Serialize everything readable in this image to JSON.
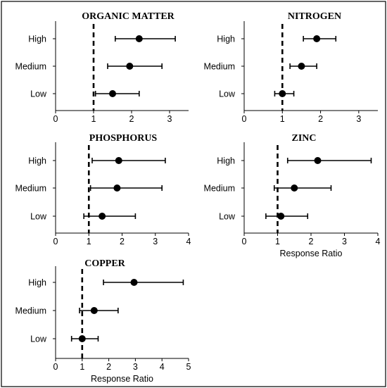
{
  "chart_data": [
    {
      "type": "forest",
      "title": "ORGANIC MATTER",
      "categories": [
        "High",
        "Medium",
        "Low"
      ],
      "points": [
        {
          "category": "High",
          "value": 2.2,
          "lower": 1.57,
          "upper": 3.15
        },
        {
          "category": "Medium",
          "value": 1.95,
          "lower": 1.37,
          "upper": 2.8
        },
        {
          "category": "Low",
          "value": 1.5,
          "lower": 1.05,
          "upper": 2.2
        }
      ],
      "xlim": [
        0,
        3.5
      ],
      "xticks": [
        "0",
        "1",
        "2",
        "3"
      ],
      "reference_line": 1,
      "xlabel": ""
    },
    {
      "type": "forest",
      "title": "NITROGEN",
      "categories": [
        "High",
        "Medium",
        "Low"
      ],
      "points": [
        {
          "category": "High",
          "value": 1.9,
          "lower": 1.55,
          "upper": 2.4
        },
        {
          "category": "Medium",
          "value": 1.5,
          "lower": 1.2,
          "upper": 1.9
        },
        {
          "category": "Low",
          "value": 1.0,
          "lower": 0.8,
          "upper": 1.3
        }
      ],
      "xlim": [
        0,
        3.5
      ],
      "xticks": [
        "0",
        "1",
        "2",
        "3"
      ],
      "reference_line": 1,
      "xlabel": ""
    },
    {
      "type": "forest",
      "title": "PHOSPHORUS",
      "categories": [
        "High",
        "Medium",
        "Low"
      ],
      "points": [
        {
          "category": "High",
          "value": 1.9,
          "lower": 1.1,
          "upper": 3.3
        },
        {
          "category": "Medium",
          "value": 1.85,
          "lower": 1.05,
          "upper": 3.2
        },
        {
          "category": "Low",
          "value": 1.4,
          "lower": 0.85,
          "upper": 2.4
        }
      ],
      "xlim": [
        0,
        4
      ],
      "xticks": [
        "0",
        "1",
        "2",
        "3",
        "4"
      ],
      "reference_line": 1,
      "xlabel": ""
    },
    {
      "type": "forest",
      "title": "ZINC",
      "categories": [
        "High",
        "Medium",
        "Low"
      ],
      "points": [
        {
          "category": "High",
          "value": 2.2,
          "lower": 1.3,
          "upper": 3.8
        },
        {
          "category": "Medium",
          "value": 1.5,
          "lower": 0.9,
          "upper": 2.6
        },
        {
          "category": "Low",
          "value": 1.1,
          "lower": 0.65,
          "upper": 1.9
        }
      ],
      "xlim": [
        0,
        4
      ],
      "xticks": [
        "0",
        "1",
        "2",
        "3",
        "4"
      ],
      "reference_line": 1,
      "xlabel": "Response Ratio"
    },
    {
      "type": "forest",
      "title": "COPPER",
      "categories": [
        "High",
        "Medium",
        "Low"
      ],
      "points": [
        {
          "category": "High",
          "value": 2.95,
          "lower": 1.8,
          "upper": 4.8
        },
        {
          "category": "Medium",
          "value": 1.45,
          "lower": 0.9,
          "upper": 2.35
        },
        {
          "category": "Low",
          "value": 1.0,
          "lower": 0.6,
          "upper": 1.6
        }
      ],
      "xlim": [
        0,
        5
      ],
      "xticks": [
        "0",
        "1",
        "2",
        "3",
        "4",
        "5"
      ],
      "reference_line": 1,
      "xlabel": "Response Ratio"
    }
  ]
}
